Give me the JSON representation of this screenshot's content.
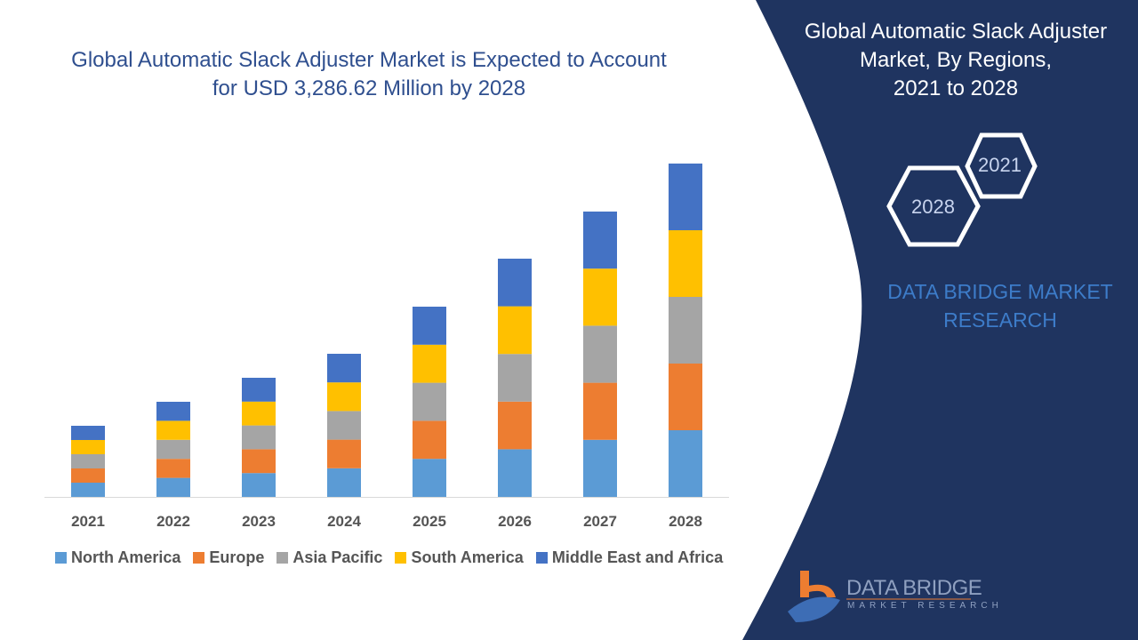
{
  "chart_data": {
    "type": "bar",
    "stacked": true,
    "title": "Global Automatic Slack Adjuster Market is Expected to Account for USD 3,286.62 Million by 2028",
    "title_lines": [
      "Global Automatic Slack Adjuster Market is Expected to Account",
      "for USD 3,286.62 Million by 2028"
    ],
    "categories": [
      "2021",
      "2022",
      "2023",
      "2024",
      "2025",
      "2026",
      "2027",
      "2028"
    ],
    "series": [
      {
        "name": "North America",
        "color": "#5b9bd5",
        "values": [
          16,
          21.4,
          26.8,
          32.2,
          42.8,
          53.6,
          64.2,
          75
        ]
      },
      {
        "name": "Europe",
        "color": "#ed7d31",
        "values": [
          16,
          21.4,
          26.8,
          32.2,
          42.8,
          53.6,
          64.2,
          75
        ]
      },
      {
        "name": "Asia Pacific",
        "color": "#a5a5a5",
        "values": [
          16,
          21.4,
          26.8,
          32.2,
          42.8,
          53.6,
          64.2,
          75
        ]
      },
      {
        "name": "South America",
        "color": "#ffc000",
        "values": [
          16,
          21.4,
          26.8,
          32.2,
          42.8,
          53.6,
          64.2,
          75
        ]
      },
      {
        "name": "Middle East and Africa",
        "color": "#4472c4",
        "values": [
          16,
          21.4,
          26.8,
          32.2,
          42.8,
          53.6,
          64.2,
          75
        ]
      }
    ],
    "ylim": [
      0,
      375
    ],
    "y_axis_visible": false,
    "grid": false,
    "legend": "bottom"
  },
  "side_panel": {
    "title_lines": [
      "Global Automatic Slack Adjuster",
      "Market, By Regions,",
      "2021 to 2028"
    ],
    "hex_start": "2021",
    "hex_end": "2028",
    "brand_lines": [
      "DATA BRIDGE MARKET",
      "RESEARCH"
    ],
    "background": "#1f3460"
  },
  "logo": {
    "name": "DATA BRIDGE",
    "tagline": "MARKET RESEARCH"
  }
}
